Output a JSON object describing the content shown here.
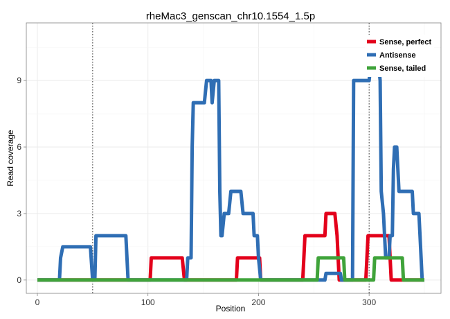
{
  "chart_data": {
    "type": "line",
    "title": "rheMac3_genscan_chr10.1554_1.5p",
    "xlabel": "Position",
    "ylabel": "Read coverage",
    "xlim": [
      -10,
      365
    ],
    "ylim": [
      -0.6,
      11.6
    ],
    "xticks": [
      0,
      100,
      200,
      300
    ],
    "yticks": [
      0,
      3,
      6,
      9
    ],
    "grid": true,
    "legend": {
      "position": "top-right"
    },
    "vlines": [
      50,
      300
    ],
    "series": [
      {
        "name": "Sense, perfect",
        "color": "#E3001B",
        "points": [
          [
            0,
            0
          ],
          [
            102,
            0
          ],
          [
            103,
            1
          ],
          [
            131,
            1
          ],
          [
            133,
            0
          ],
          [
            180,
            0
          ],
          [
            181,
            1
          ],
          [
            201,
            1
          ],
          [
            202,
            0
          ],
          [
            240,
            0
          ],
          [
            241,
            1
          ],
          [
            242,
            2
          ],
          [
            260,
            2
          ],
          [
            261,
            3
          ],
          [
            269,
            3
          ],
          [
            271,
            2
          ],
          [
            272,
            1
          ],
          [
            273,
            0
          ],
          [
            297,
            0
          ],
          [
            298,
            1
          ],
          [
            299,
            2
          ],
          [
            318,
            2
          ],
          [
            319,
            1
          ],
          [
            320,
            0
          ],
          [
            350,
            0
          ]
        ]
      },
      {
        "name": "Antisense",
        "color": "#2F6EB4",
        "points": [
          [
            0,
            0
          ],
          [
            20,
            0
          ],
          [
            21,
            1
          ],
          [
            23,
            1.5
          ],
          [
            48,
            1.5
          ],
          [
            50,
            0
          ],
          [
            52,
            0
          ],
          [
            53,
            2
          ],
          [
            80,
            2
          ],
          [
            82,
            0
          ],
          [
            135,
            0
          ],
          [
            136,
            1
          ],
          [
            139,
            1
          ],
          [
            140,
            6
          ],
          [
            141,
            8
          ],
          [
            151,
            8
          ],
          [
            153,
            9
          ],
          [
            157,
            9
          ],
          [
            158,
            8
          ],
          [
            160,
            9
          ],
          [
            164,
            9
          ],
          [
            165,
            4
          ],
          [
            166,
            2
          ],
          [
            167,
            2
          ],
          [
            169,
            3
          ],
          [
            173,
            3
          ],
          [
            175,
            4
          ],
          [
            184,
            4
          ],
          [
            186,
            3
          ],
          [
            195,
            3
          ],
          [
            196,
            2
          ],
          [
            199,
            2
          ],
          [
            200,
            1
          ],
          [
            202,
            0
          ],
          [
            260,
            0
          ],
          [
            261,
            0.3
          ],
          [
            274,
            0.3
          ],
          [
            275,
            0
          ],
          [
            285,
            0
          ],
          [
            286,
            9
          ],
          [
            300,
            9
          ],
          [
            302,
            10
          ],
          [
            308,
            10
          ],
          [
            310,
            9
          ],
          [
            311,
            4
          ],
          [
            313,
            3
          ],
          [
            315,
            1
          ],
          [
            318,
            1
          ],
          [
            319,
            2
          ],
          [
            321,
            2
          ],
          [
            322,
            5
          ],
          [
            323,
            6
          ],
          [
            325,
            6
          ],
          [
            326,
            5
          ],
          [
            327,
            4
          ],
          [
            339,
            4
          ],
          [
            340,
            3
          ],
          [
            345,
            3
          ],
          [
            346,
            2
          ],
          [
            348,
            0
          ],
          [
            350,
            0
          ]
        ]
      },
      {
        "name": "Sense, tailed",
        "color": "#3FA33A",
        "points": [
          [
            0,
            0
          ],
          [
            253,
            0
          ],
          [
            254,
            1
          ],
          [
            277,
            1
          ],
          [
            278,
            0
          ],
          [
            304,
            0
          ],
          [
            305,
            1
          ],
          [
            330,
            1
          ],
          [
            331,
            0
          ],
          [
            350,
            0
          ]
        ]
      }
    ]
  }
}
